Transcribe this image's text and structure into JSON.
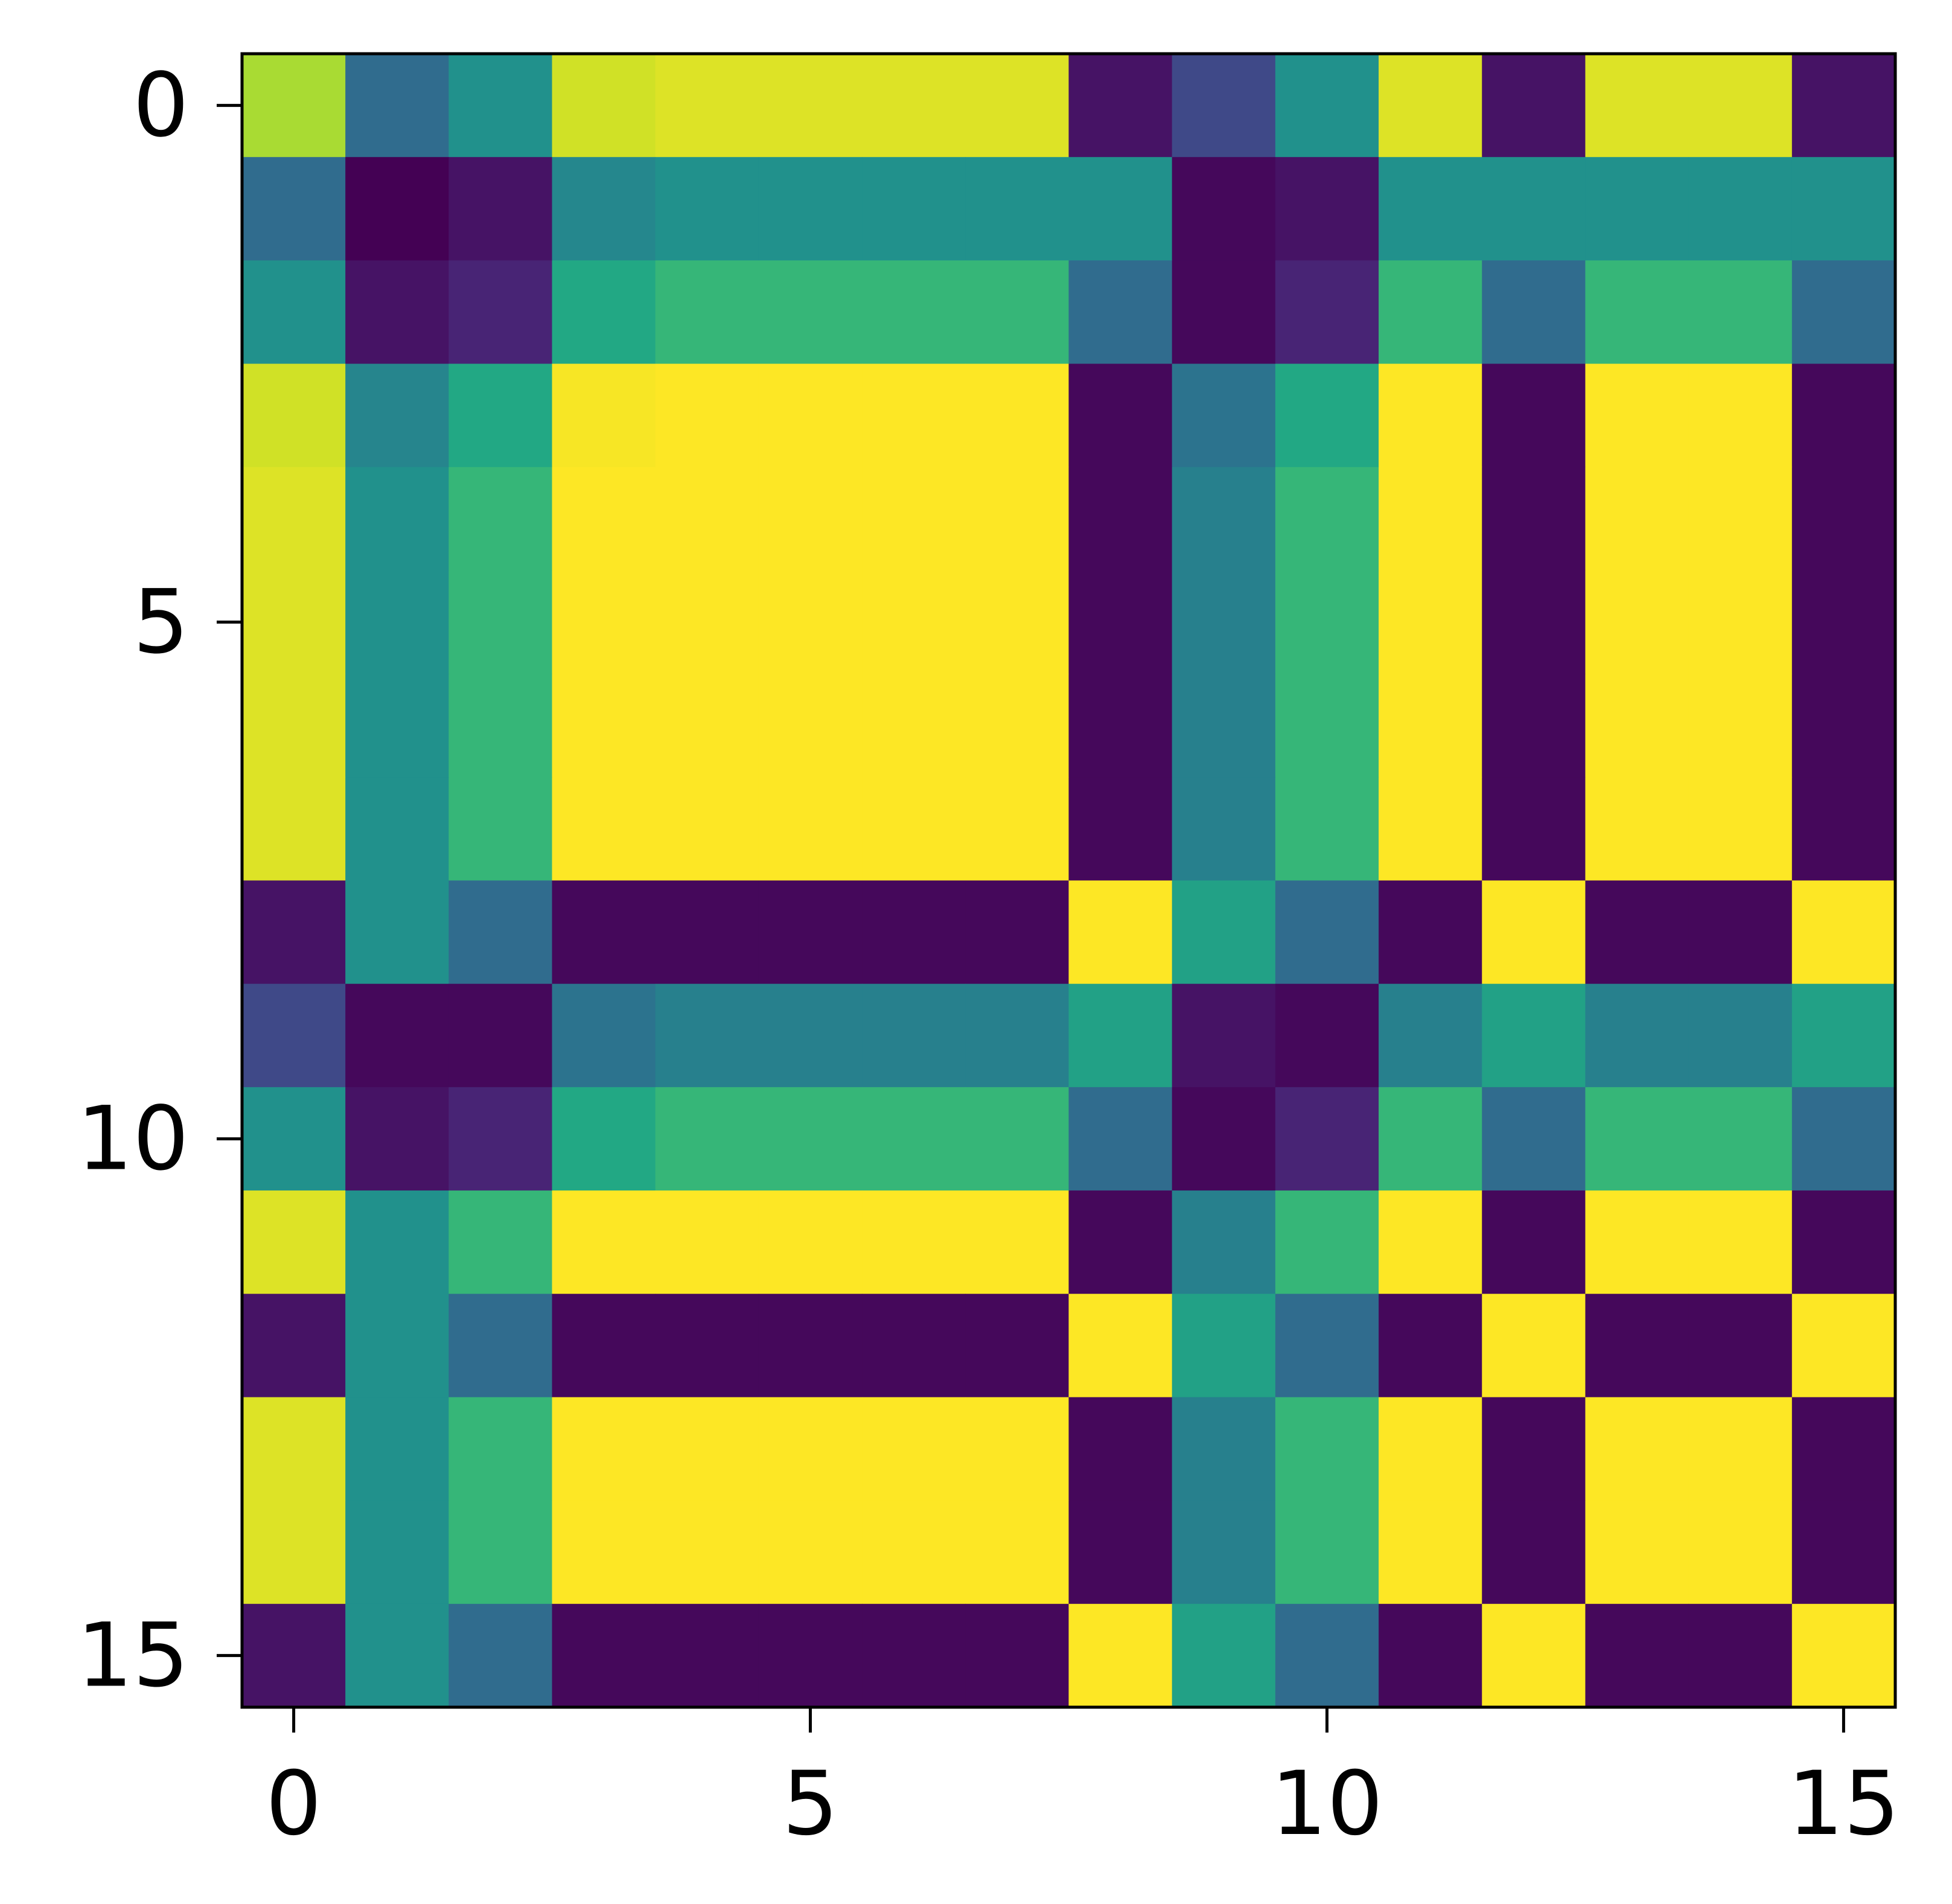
{
  "chart_data": {
    "type": "heatmap",
    "colormap": "viridis",
    "xlim": [
      -0.5,
      15.5
    ],
    "ylim": [
      15.5,
      -0.5
    ],
    "xticks": [
      0,
      5,
      10,
      15
    ],
    "yticks": [
      0,
      5,
      10,
      15
    ],
    "z": [
      [
        0.87,
        0.35,
        0.5,
        0.93,
        0.95,
        0.95,
        0.95,
        0.95,
        0.05,
        0.22,
        0.5,
        0.95,
        0.05,
        0.95,
        0.95,
        0.05
      ],
      [
        0.35,
        0.0,
        0.05,
        0.46,
        0.5,
        0.5,
        0.5,
        0.5,
        0.5,
        0.02,
        0.05,
        0.5,
        0.5,
        0.5,
        0.5,
        0.5
      ],
      [
        0.5,
        0.05,
        0.1,
        0.6,
        0.66,
        0.66,
        0.66,
        0.66,
        0.35,
        0.02,
        0.1,
        0.66,
        0.35,
        0.66,
        0.66,
        0.35
      ],
      [
        0.93,
        0.45,
        0.6,
        0.99,
        1.0,
        1.0,
        1.0,
        1.0,
        0.02,
        0.38,
        0.6,
        1.0,
        0.02,
        1.0,
        1.0,
        0.02
      ],
      [
        0.95,
        0.5,
        0.66,
        1.0,
        1.0,
        1.0,
        1.0,
        1.0,
        0.02,
        0.43,
        0.66,
        1.0,
        0.02,
        1.0,
        1.0,
        0.02
      ],
      [
        0.95,
        0.5,
        0.66,
        1.0,
        1.0,
        1.0,
        1.0,
        1.0,
        0.02,
        0.43,
        0.66,
        1.0,
        0.02,
        1.0,
        1.0,
        0.02
      ],
      [
        0.95,
        0.5,
        0.66,
        1.0,
        1.0,
        1.0,
        1.0,
        1.0,
        0.02,
        0.43,
        0.66,
        1.0,
        0.02,
        1.0,
        1.0,
        0.02
      ],
      [
        0.95,
        0.5,
        0.66,
        1.0,
        1.0,
        1.0,
        1.0,
        1.0,
        0.02,
        0.43,
        0.66,
        1.0,
        0.02,
        1.0,
        1.0,
        0.02
      ],
      [
        0.05,
        0.5,
        0.35,
        0.02,
        0.02,
        0.02,
        0.02,
        0.02,
        1.0,
        0.57,
        0.35,
        0.02,
        1.0,
        0.02,
        0.02,
        1.0
      ],
      [
        0.22,
        0.02,
        0.02,
        0.38,
        0.43,
        0.43,
        0.43,
        0.43,
        0.57,
        0.05,
        0.02,
        0.43,
        0.57,
        0.43,
        0.43,
        0.57
      ],
      [
        0.5,
        0.05,
        0.1,
        0.6,
        0.66,
        0.66,
        0.66,
        0.66,
        0.35,
        0.02,
        0.1,
        0.66,
        0.35,
        0.66,
        0.66,
        0.35
      ],
      [
        0.95,
        0.5,
        0.66,
        1.0,
        1.0,
        1.0,
        1.0,
        1.0,
        0.02,
        0.43,
        0.66,
        1.0,
        0.02,
        1.0,
        1.0,
        0.02
      ],
      [
        0.05,
        0.5,
        0.35,
        0.02,
        0.02,
        0.02,
        0.02,
        0.02,
        1.0,
        0.57,
        0.35,
        0.02,
        1.0,
        0.02,
        0.02,
        1.0
      ],
      [
        0.95,
        0.5,
        0.66,
        1.0,
        1.0,
        1.0,
        1.0,
        1.0,
        0.02,
        0.43,
        0.66,
        1.0,
        0.02,
        1.0,
        1.0,
        0.02
      ],
      [
        0.95,
        0.5,
        0.66,
        1.0,
        1.0,
        1.0,
        1.0,
        1.0,
        0.02,
        0.43,
        0.66,
        1.0,
        0.02,
        1.0,
        1.0,
        0.02
      ],
      [
        0.05,
        0.5,
        0.35,
        0.02,
        0.02,
        0.02,
        0.02,
        0.02,
        1.0,
        0.57,
        0.35,
        0.02,
        1.0,
        0.02,
        0.02,
        1.0
      ]
    ]
  }
}
